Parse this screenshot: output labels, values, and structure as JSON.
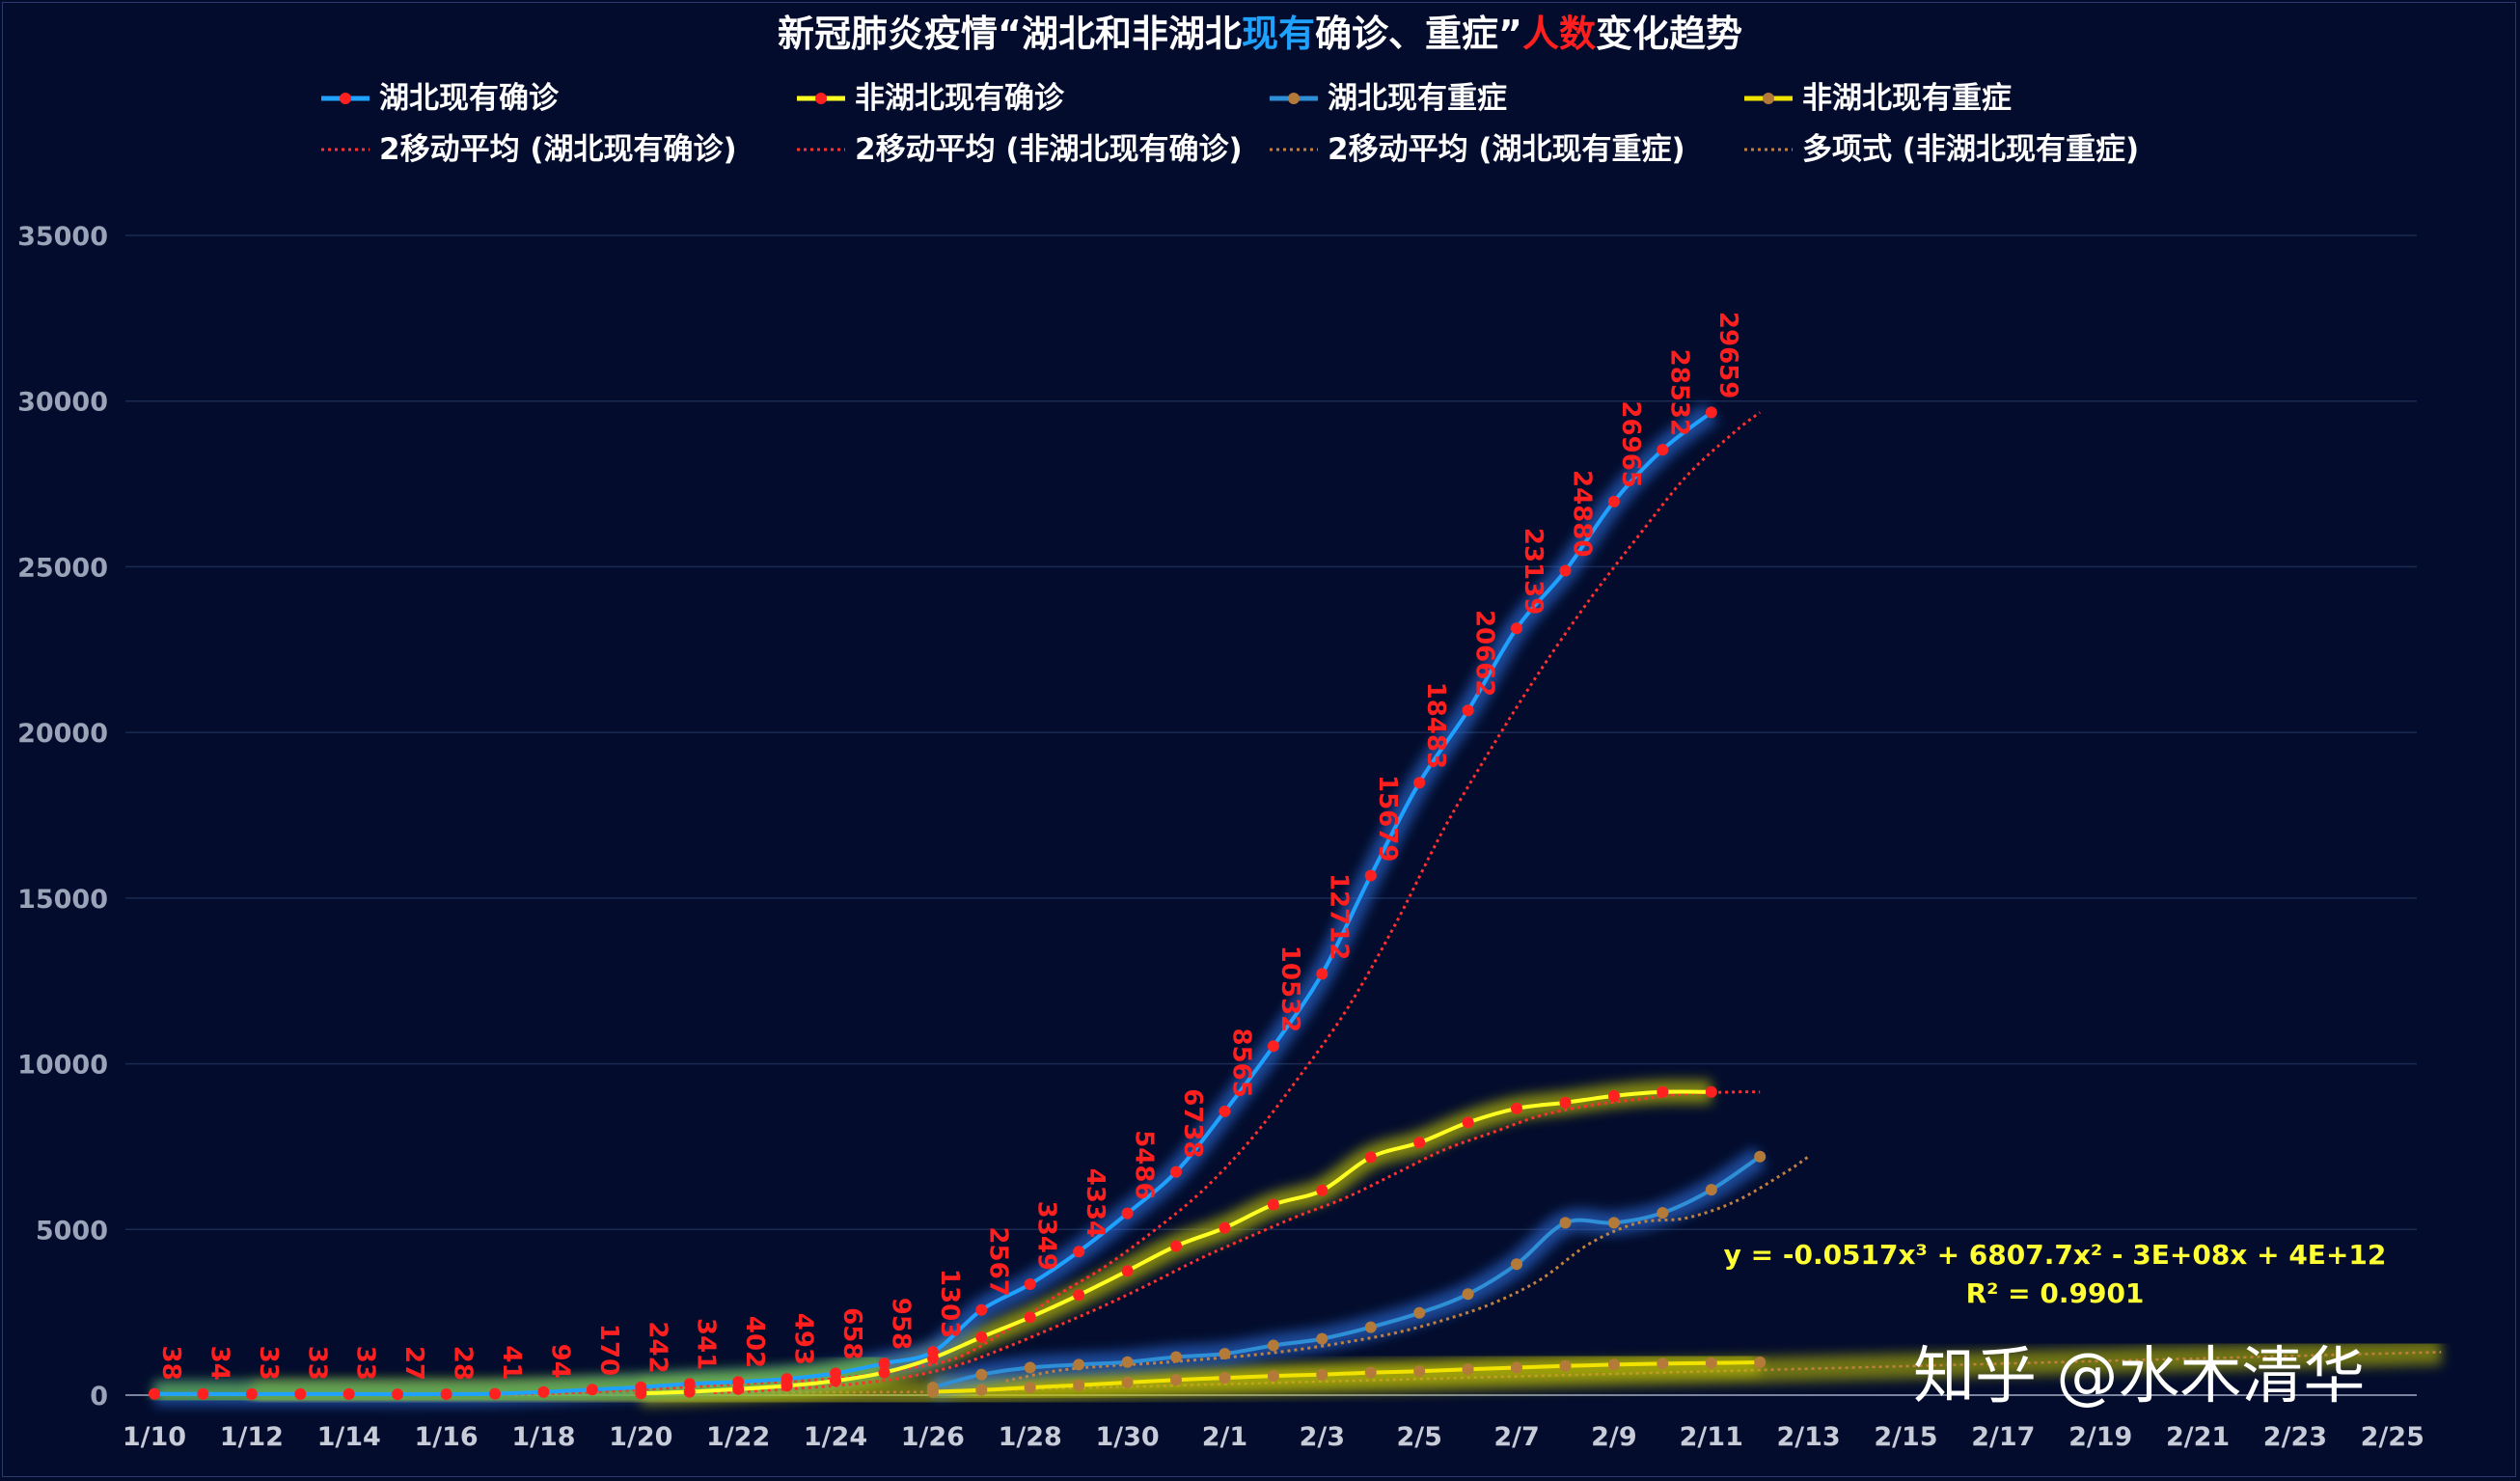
{
  "colors": {
    "background": "#030c2c",
    "hubei_confirmed": "#1fa2ff",
    "nonhubei_confirmed": "#ffff22",
    "hubei_severe": "#2e8fd6",
    "nonhubei_severe": "#f2e200",
    "marker_red": "#ff2020",
    "marker_brown": "#b47a3a",
    "label_red": "#ff1f1f",
    "title_blue": "#1fa2ff",
    "title_red": "#ff1f1f",
    "equation": "#ffff33"
  },
  "chart_data": {
    "type": "line",
    "title_parts": [
      {
        "text": "新冠肺炎疫情“湖北和非湖北",
        "color": "white"
      },
      {
        "text": "现有",
        "color": "blue"
      },
      {
        "text": "确诊、重症”",
        "color": "white"
      },
      {
        "text": "人数",
        "color": "red"
      },
      {
        "text": "变化趋势",
        "color": "white"
      }
    ],
    "legend": [
      {
        "label": "湖北现有确诊",
        "style": "line-marker",
        "color": "#1fa2ff",
        "marker": "#ff2020"
      },
      {
        "label": "非湖北现有确诊",
        "style": "line-marker",
        "color": "#ffff22",
        "marker": "#ff2020"
      },
      {
        "label": "湖北现有重症",
        "style": "line-marker",
        "color": "#2e8fd6",
        "marker": "#b47a3a"
      },
      {
        "label": "非湖北现有重症",
        "style": "line-marker",
        "color": "#f2e200",
        "marker": "#b47a3a"
      },
      {
        "label": "2移动平均 (湖北现有确诊)",
        "style": "dotted",
        "color": "#ff3030"
      },
      {
        "label": "2移动平均 (非湖北现有确诊)",
        "style": "dotted",
        "color": "#ff3030"
      },
      {
        "label": "2移动平均 (湖北现有重症)",
        "style": "dotted",
        "color": "#c08040"
      },
      {
        "label": "多项式 (非湖北现有重症)",
        "style": "dotted",
        "color": "#c08040"
      }
    ],
    "x_tick_labels": [
      "1/10",
      "1/12",
      "1/14",
      "1/16",
      "1/18",
      "1/20",
      "1/22",
      "1/24",
      "1/26",
      "1/28",
      "1/30",
      "2/1",
      "2/3",
      "2/5",
      "2/7",
      "2/9",
      "2/11",
      "2/13",
      "2/15",
      "2/17",
      "2/19",
      "2/21",
      "2/23",
      "2/25"
    ],
    "x_range_days": [
      0,
      47
    ],
    "ylim": [
      0,
      35000
    ],
    "y_ticks": [
      0,
      5000,
      10000,
      15000,
      20000,
      25000,
      30000,
      35000
    ],
    "grid": true,
    "series": [
      {
        "name": "湖北现有确诊",
        "key": "hubei_confirmed",
        "start_index": 0,
        "values": [
          38,
          34,
          33,
          33,
          33,
          27,
          28,
          41,
          94,
          170,
          242,
          341,
          402,
          493,
          658,
          958,
          1303,
          2567,
          3349,
          4334,
          5486,
          6738,
          8565,
          10532,
          12712,
          15679,
          18483,
          20662,
          23139,
          24880,
          26965,
          28532,
          29659
        ],
        "data_labels": [
          "38",
          "34",
          "33",
          "33",
          "33",
          "27",
          "28",
          "41",
          "94",
          "170",
          "242",
          "341",
          "402",
          "493",
          "658",
          "958",
          "1303",
          "2567",
          "3349",
          "4334",
          "5486",
          "6738",
          "8565",
          "10532",
          "12712",
          "15679",
          "18483",
          "20662",
          "23139",
          "24880",
          "26965",
          "28532",
          "29659"
        ]
      },
      {
        "name": "非湖北现有确诊",
        "key": "nonhubei_confirmed",
        "start_index": 10,
        "values": [
          50,
          100,
          180,
          280,
          430,
          680,
          1120,
          1750,
          2350,
          3020,
          3750,
          4500,
          5050,
          5750,
          6180,
          7180,
          7620,
          8230,
          8650,
          8830,
          9030,
          9150,
          9150
        ]
      },
      {
        "name": "湖北现有重症",
        "key": "hubei_severe",
        "start_index": 16,
        "values": [
          230,
          620,
          830,
          920,
          1000,
          1150,
          1250,
          1500,
          1700,
          2050,
          2480,
          3050,
          3950,
          5200,
          5200,
          5500,
          6200,
          7200
        ]
      },
      {
        "name": "非湖北现有重症",
        "key": "nonhubei_severe",
        "start_index": 16,
        "values": [
          100,
          150,
          230,
          300,
          380,
          460,
          520,
          580,
          620,
          680,
          720,
          780,
          830,
          880,
          920,
          950,
          970,
          990
        ]
      }
    ],
    "trendline_equation": "y = -0.0517x³ + 6807.7x² - 3E+08x + 4E+12",
    "trendline_r2": "R² = 0.9901"
  },
  "watermark": "知乎 @水木清华"
}
